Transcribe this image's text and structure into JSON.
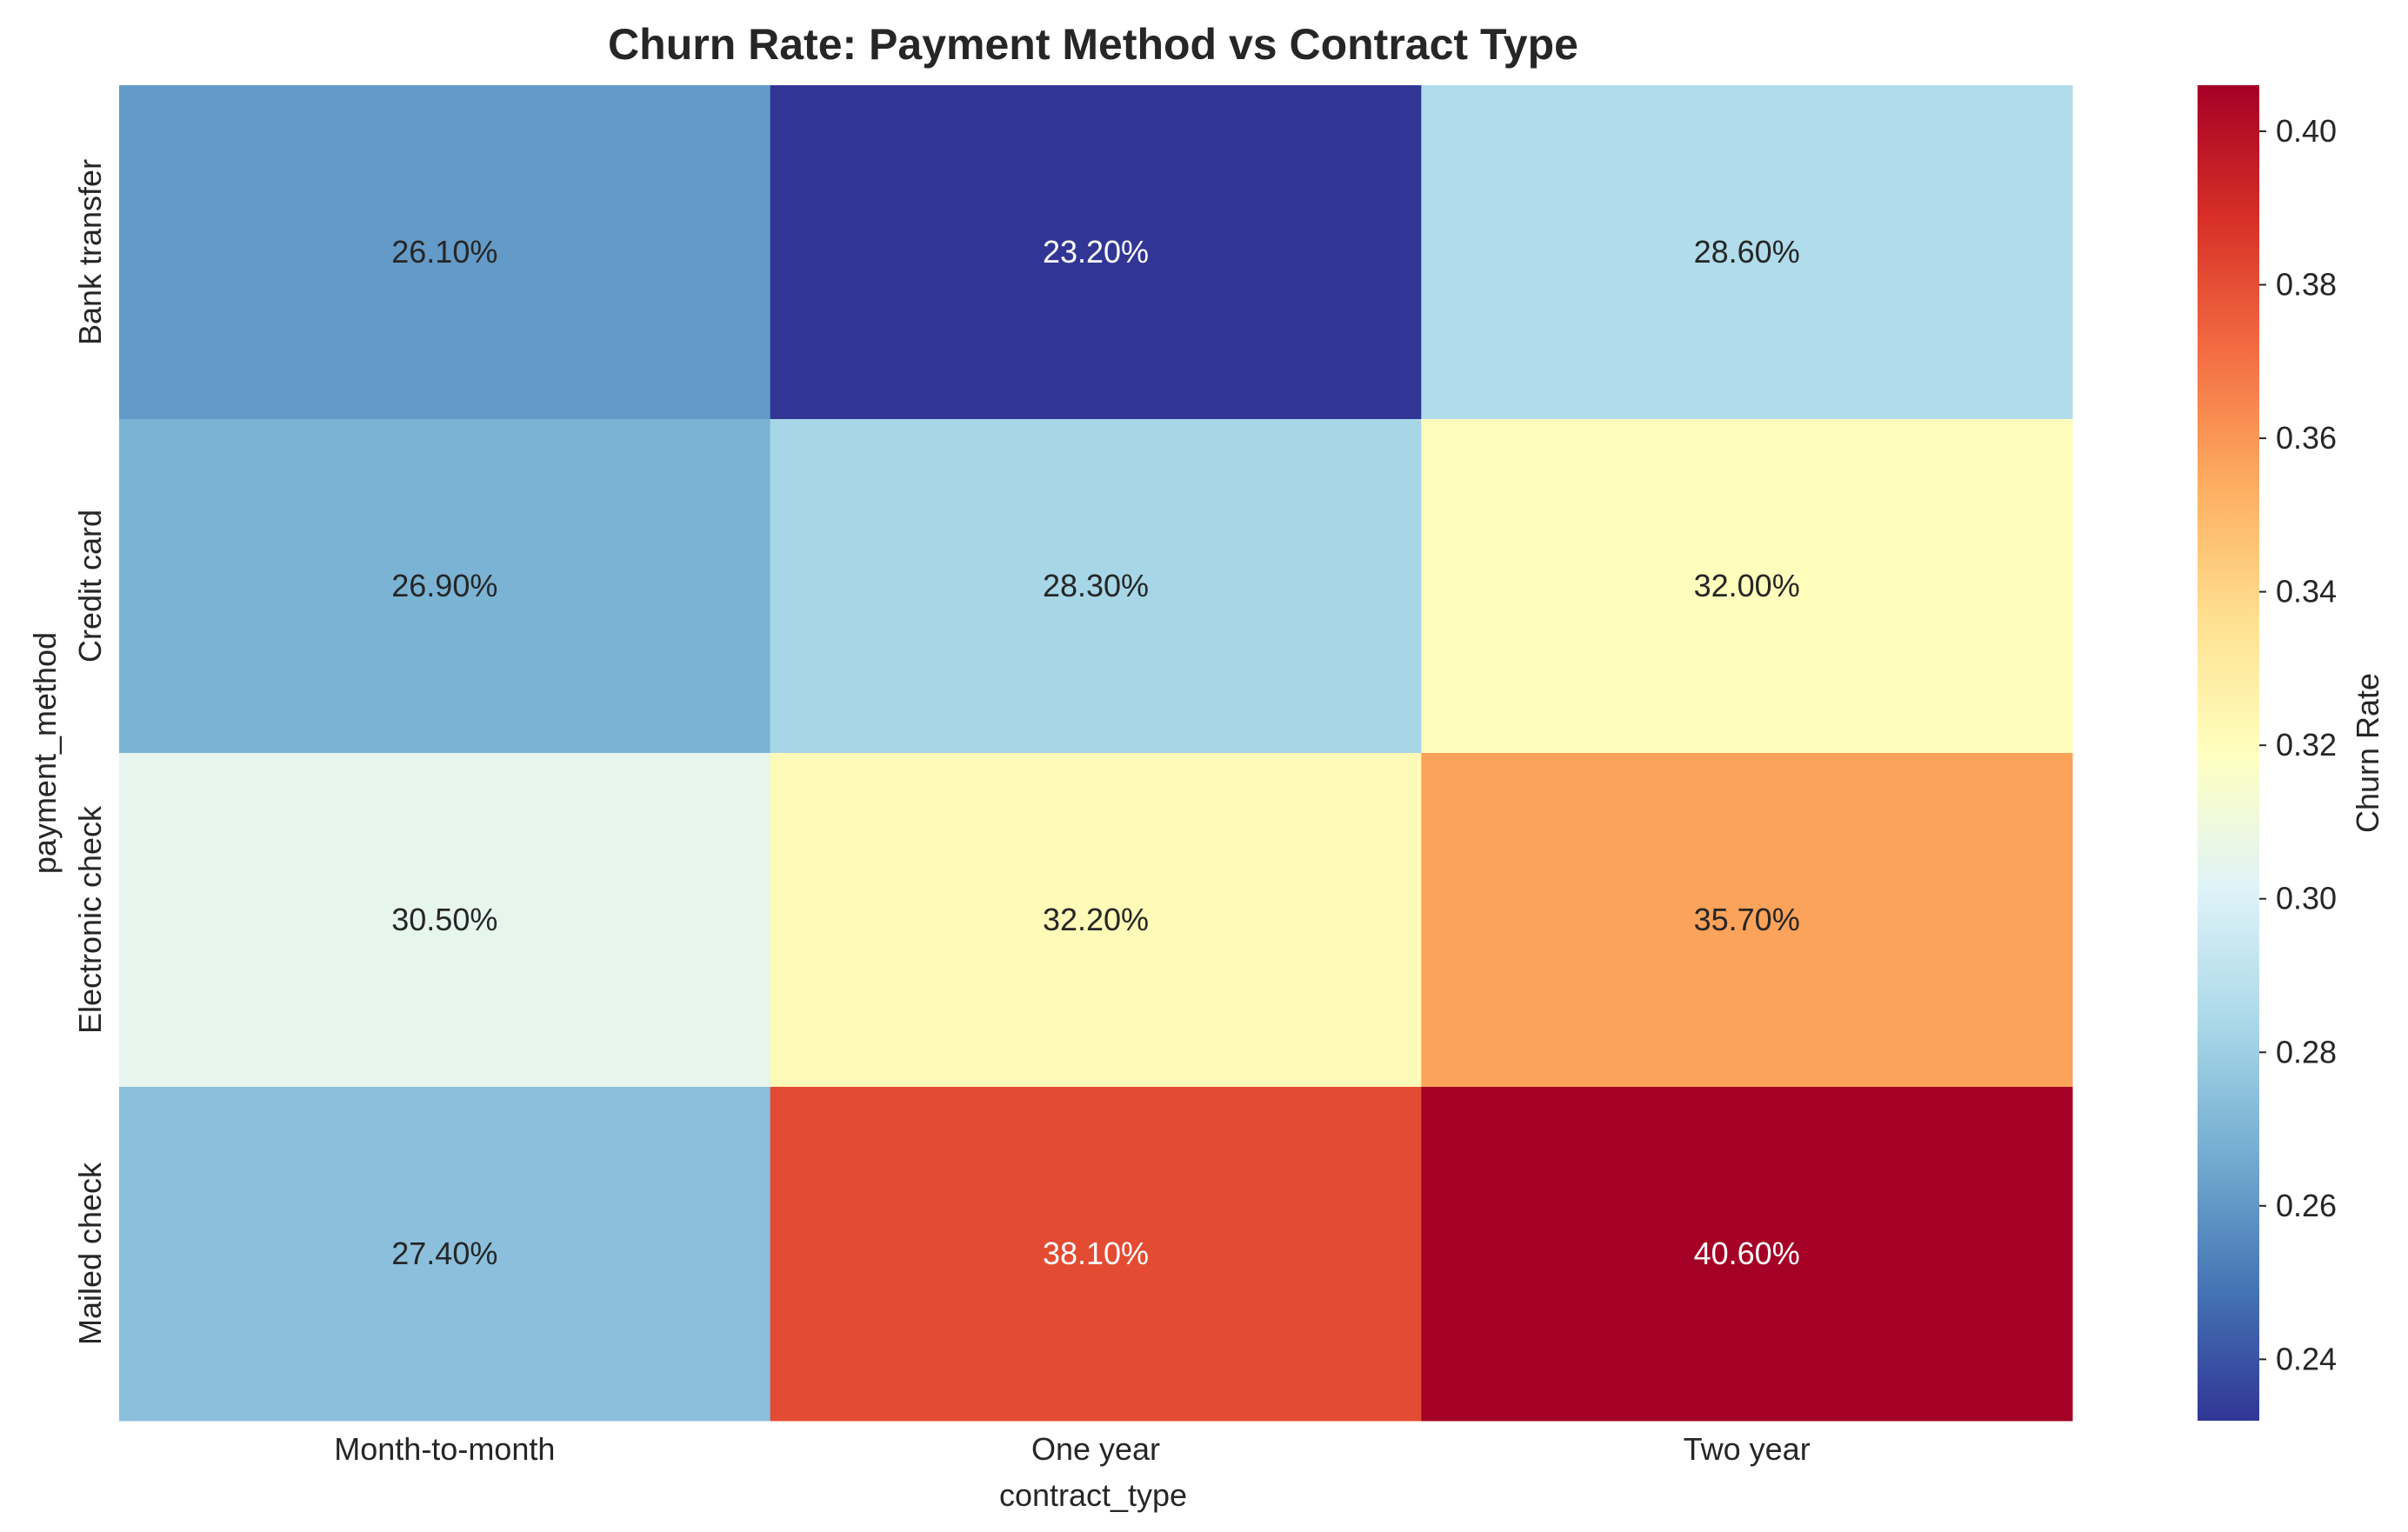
{
  "chart_data": {
    "type": "heatmap",
    "title": "Churn Rate: Payment Method vs Contract Type",
    "xlabel": "contract_type",
    "ylabel": "payment_method",
    "x_categories": [
      "Month-to-month",
      "One year",
      "Two year"
    ],
    "y_categories": [
      "Bank transfer",
      "Credit card",
      "Electronic check",
      "Mailed check"
    ],
    "values": [
      [
        0.261,
        0.232,
        0.286
      ],
      [
        0.269,
        0.283,
        0.32
      ],
      [
        0.305,
        0.322,
        0.357
      ],
      [
        0.274,
        0.381,
        0.406
      ]
    ],
    "cell_labels": [
      [
        "26.10%",
        "23.20%",
        "28.60%"
      ],
      [
        "26.90%",
        "28.30%",
        "32.00%"
      ],
      [
        "30.50%",
        "32.20%",
        "35.70%"
      ],
      [
        "27.40%",
        "38.10%",
        "40.60%"
      ]
    ],
    "colormap": "RdYlBu_r",
    "colorbar": {
      "label": "Churn Rate",
      "range": [
        0.232,
        0.406
      ],
      "ticks": [
        "0.24",
        "0.26",
        "0.28",
        "0.30",
        "0.32",
        "0.34",
        "0.36",
        "0.38",
        "0.40"
      ]
    }
  }
}
